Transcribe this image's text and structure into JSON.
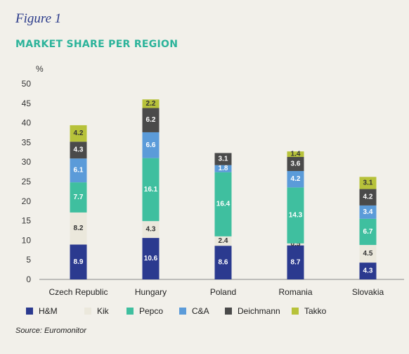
{
  "figure_label": "Figure 1",
  "title": "MARKET SHARE PER REGION",
  "source": "Source: Euromonitor",
  "chart_data": {
    "type": "bar",
    "stacked": true,
    "title": "MARKET SHARE PER REGION",
    "ylabel": "%",
    "xlabel": "",
    "ylim": [
      0,
      50
    ],
    "yticks": [
      0,
      5,
      10,
      15,
      20,
      25,
      30,
      35,
      40,
      45,
      50
    ],
    "grid": false,
    "legend_position": "bottom",
    "categories": [
      "Czech Republic",
      "Hungary",
      "Poland",
      "Romania",
      "Slovakia"
    ],
    "series": [
      {
        "name": "H&M",
        "color": "#2b3a8f",
        "values": [
          8.9,
          10.6,
          8.6,
          8.7,
          4.3
        ]
      },
      {
        "name": "Kik",
        "color": "#ebe8dc",
        "values": [
          8.2,
          4.3,
          2.4,
          0.5,
          4.5
        ]
      },
      {
        "name": "Pepco",
        "color": "#3fbf9f",
        "values": [
          7.7,
          16.1,
          16.4,
          14.3,
          6.7
        ]
      },
      {
        "name": "C&A",
        "color": "#5b9bd9",
        "values": [
          6.1,
          6.6,
          1.8,
          4.2,
          3.4
        ]
      },
      {
        "name": "Deichmann",
        "color": "#4a4a4a",
        "values": [
          4.3,
          6.2,
          3.1,
          3.6,
          4.2
        ]
      },
      {
        "name": "Takko",
        "color": "#b7c23a",
        "values": [
          4.2,
          2.2,
          null,
          1.4,
          3.1
        ]
      }
    ]
  }
}
